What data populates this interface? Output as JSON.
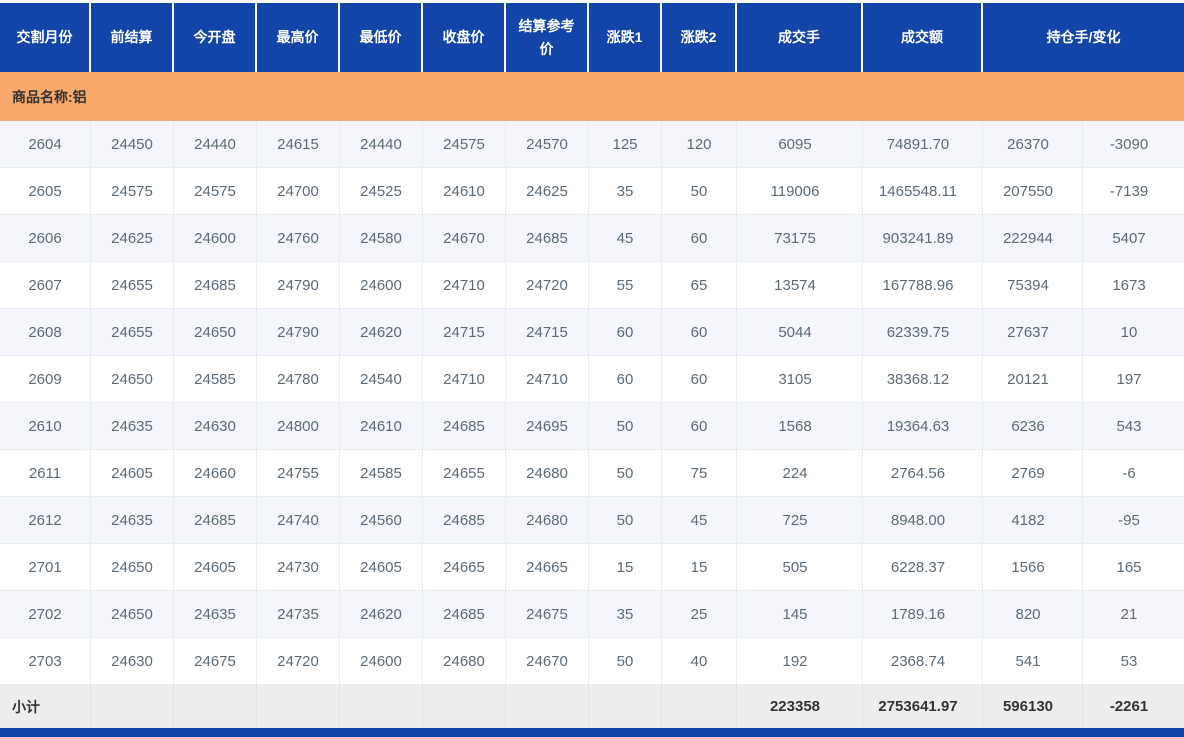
{
  "colors": {
    "header_blue": "#1344a8",
    "group_orange": "#f9a96c",
    "row_stripe": "#f4f6fb",
    "subtotal_bg": "#ededee",
    "body_text": "#5c6a76"
  },
  "table": {
    "column_keys": [
      "delivery-month",
      "prev-settlement",
      "open",
      "high",
      "low",
      "close",
      "settlement-ref",
      "change1",
      "change2",
      "volume",
      "turnover",
      "open-interest",
      "oi-change"
    ],
    "headers": [
      {
        "key": "delivery-month",
        "label": "交割月份",
        "colspan": 1
      },
      {
        "key": "prev-settlement",
        "label": "前结算",
        "colspan": 1
      },
      {
        "key": "open",
        "label": "今开盘",
        "colspan": 1
      },
      {
        "key": "high",
        "label": "最高价",
        "colspan": 1
      },
      {
        "key": "low",
        "label": "最低价",
        "colspan": 1
      },
      {
        "key": "close",
        "label": "收盘价",
        "colspan": 1
      },
      {
        "key": "settlement-ref",
        "label": "结算参考价",
        "colspan": 1
      },
      {
        "key": "change1",
        "label": "涨跌1",
        "colspan": 1
      },
      {
        "key": "change2",
        "label": "涨跌2",
        "colspan": 1
      },
      {
        "key": "volume",
        "label": "成交手",
        "colspan": 1
      },
      {
        "key": "turnover",
        "label": "成交额",
        "colspan": 1
      },
      {
        "key": "oi-and-change",
        "label": "持仓手/变化",
        "colspan": 2
      }
    ],
    "group_label": "商品名称:铝",
    "rows": [
      [
        "2604",
        "24450",
        "24440",
        "24615",
        "24440",
        "24575",
        "24570",
        "125",
        "120",
        "6095",
        "74891.70",
        "26370",
        "-3090"
      ],
      [
        "2605",
        "24575",
        "24575",
        "24700",
        "24525",
        "24610",
        "24625",
        "35",
        "50",
        "119006",
        "1465548.11",
        "207550",
        "-7139"
      ],
      [
        "2606",
        "24625",
        "24600",
        "24760",
        "24580",
        "24670",
        "24685",
        "45",
        "60",
        "73175",
        "903241.89",
        "222944",
        "5407"
      ],
      [
        "2607",
        "24655",
        "24685",
        "24790",
        "24600",
        "24710",
        "24720",
        "55",
        "65",
        "13574",
        "167788.96",
        "75394",
        "1673"
      ],
      [
        "2608",
        "24655",
        "24650",
        "24790",
        "24620",
        "24715",
        "24715",
        "60",
        "60",
        "5044",
        "62339.75",
        "27637",
        "10"
      ],
      [
        "2609",
        "24650",
        "24585",
        "24780",
        "24540",
        "24710",
        "24710",
        "60",
        "60",
        "3105",
        "38368.12",
        "20121",
        "197"
      ],
      [
        "2610",
        "24635",
        "24630",
        "24800",
        "24610",
        "24685",
        "24695",
        "50",
        "60",
        "1568",
        "19364.63",
        "6236",
        "543"
      ],
      [
        "2611",
        "24605",
        "24660",
        "24755",
        "24585",
        "24655",
        "24680",
        "50",
        "75",
        "224",
        "2764.56",
        "2769",
        "-6"
      ],
      [
        "2612",
        "24635",
        "24685",
        "24740",
        "24560",
        "24685",
        "24680",
        "50",
        "45",
        "725",
        "8948.00",
        "4182",
        "-95"
      ],
      [
        "2701",
        "24650",
        "24605",
        "24730",
        "24605",
        "24665",
        "24665",
        "15",
        "15",
        "505",
        "6228.37",
        "1566",
        "165"
      ],
      [
        "2702",
        "24650",
        "24635",
        "24735",
        "24620",
        "24685",
        "24675",
        "35",
        "25",
        "145",
        "1789.16",
        "820",
        "21"
      ],
      [
        "2703",
        "24630",
        "24675",
        "24720",
        "24600",
        "24680",
        "24670",
        "50",
        "40",
        "192",
        "2368.74",
        "541",
        "53"
      ]
    ],
    "subtotal_row": [
      "小计",
      "",
      "",
      "",
      "",
      "",
      "",
      "",
      "",
      "223358",
      "2753641.97",
      "596130",
      "-2261"
    ]
  }
}
